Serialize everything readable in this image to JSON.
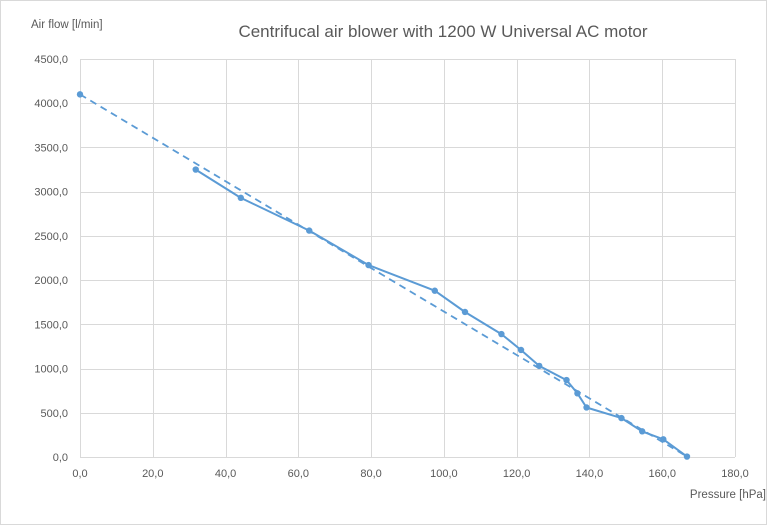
{
  "chart_data": {
    "type": "line",
    "title": "Centrifucal air blower with 1200 W Universal AC motor",
    "xlabel": "Pressure [hPa]",
    "ylabel": "Air flow [l/min]",
    "xlim": [
      0,
      180
    ],
    "ylim": [
      0,
      4500
    ],
    "x_ticks": [
      0,
      20,
      40,
      60,
      80,
      100,
      120,
      140,
      160,
      180
    ],
    "y_ticks": [
      0,
      500,
      1000,
      1500,
      2000,
      2500,
      3000,
      3500,
      4000,
      4500
    ],
    "x_tick_labels": [
      "0,0",
      "20,0",
      "40,0",
      "60,0",
      "80,0",
      "100,0",
      "120,0",
      "140,0",
      "160,0",
      "180,0"
    ],
    "y_tick_labels": [
      "0,0",
      "500,0",
      "1000,0",
      "1500,0",
      "2000,0",
      "2500,0",
      "3000,0",
      "3500,0",
      "4000,0",
      "4500,0"
    ],
    "grid": true,
    "legend": "none",
    "series_color": "#5b9bd5",
    "grid_color": "#d9d9d9",
    "series": [
      {
        "points": [
          [
            0,
            4100
          ],
          [
            31.8,
            3250
          ],
          [
            44.2,
            2930
          ],
          [
            63,
            2560
          ],
          [
            79.3,
            2170
          ],
          [
            97.5,
            1880
          ],
          [
            105.8,
            1640
          ],
          [
            115.8,
            1390
          ],
          [
            121.2,
            1210
          ],
          [
            126.2,
            1030
          ],
          [
            133.7,
            870
          ],
          [
            136.7,
            720
          ],
          [
            139.2,
            560
          ],
          [
            148.8,
            440
          ],
          [
            154.5,
            290
          ],
          [
            160.3,
            200
          ],
          [
            166.8,
            5
          ]
        ]
      }
    ],
    "trendline": {
      "style": "dashed",
      "points": [
        [
          0,
          4100
        ],
        [
          166.8,
          5
        ]
      ]
    }
  }
}
